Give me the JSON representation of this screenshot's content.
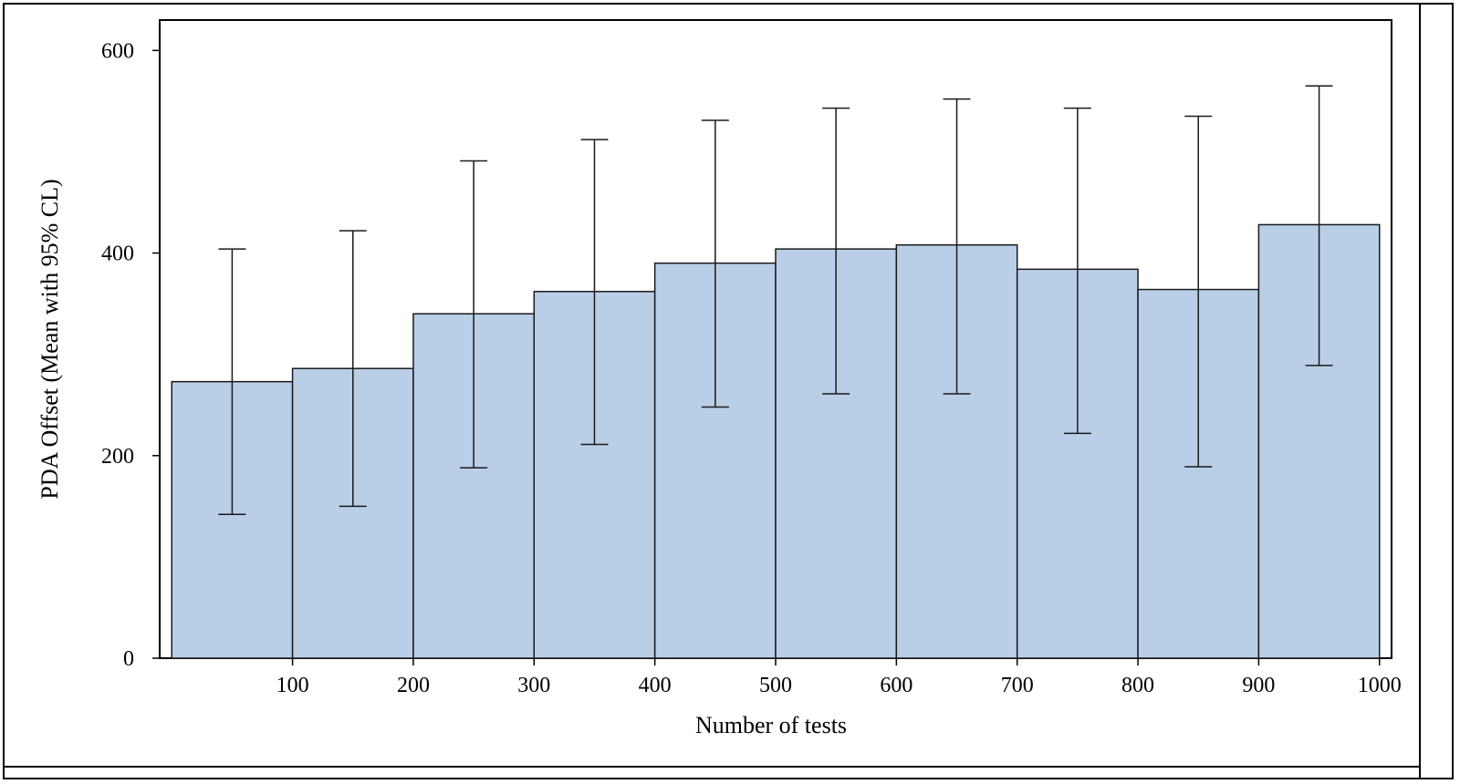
{
  "chart_data": {
    "type": "bar",
    "xlabel": "Number of tests",
    "ylabel": "PDA Offset (Mean with 95% CL)",
    "bins": [
      {
        "x0": 0,
        "x1": 100,
        "mean": 273,
        "lower": 142,
        "upper": 404
      },
      {
        "x0": 100,
        "x1": 200,
        "mean": 286,
        "lower": 150,
        "upper": 422
      },
      {
        "x0": 200,
        "x1": 300,
        "mean": 340,
        "lower": 188,
        "upper": 491
      },
      {
        "x0": 300,
        "x1": 400,
        "mean": 362,
        "lower": 211,
        "upper": 512
      },
      {
        "x0": 400,
        "x1": 500,
        "mean": 390,
        "lower": 248,
        "upper": 531
      },
      {
        "x0": 500,
        "x1": 600,
        "mean": 404,
        "lower": 261,
        "upper": 543
      },
      {
        "x0": 600,
        "x1": 700,
        "mean": 408,
        "lower": 261,
        "upper": 552
      },
      {
        "x0": 700,
        "x1": 800,
        "mean": 384,
        "lower": 222,
        "upper": 543
      },
      {
        "x0": 800,
        "x1": 900,
        "mean": 364,
        "lower": 189,
        "upper": 535
      },
      {
        "x0": 900,
        "x1": 1000,
        "mean": 428,
        "lower": 289,
        "upper": 565
      }
    ],
    "xticks": [
      100,
      200,
      300,
      400,
      500,
      600,
      700,
      800,
      900,
      1000
    ],
    "yticks": [
      0,
      200,
      400,
      600
    ],
    "xlim": [
      -10,
      1010
    ],
    "ylim": [
      0,
      630
    ],
    "grid": false,
    "bar_color": "#b9cfe7",
    "stroke_color": "#1a1a1a"
  }
}
